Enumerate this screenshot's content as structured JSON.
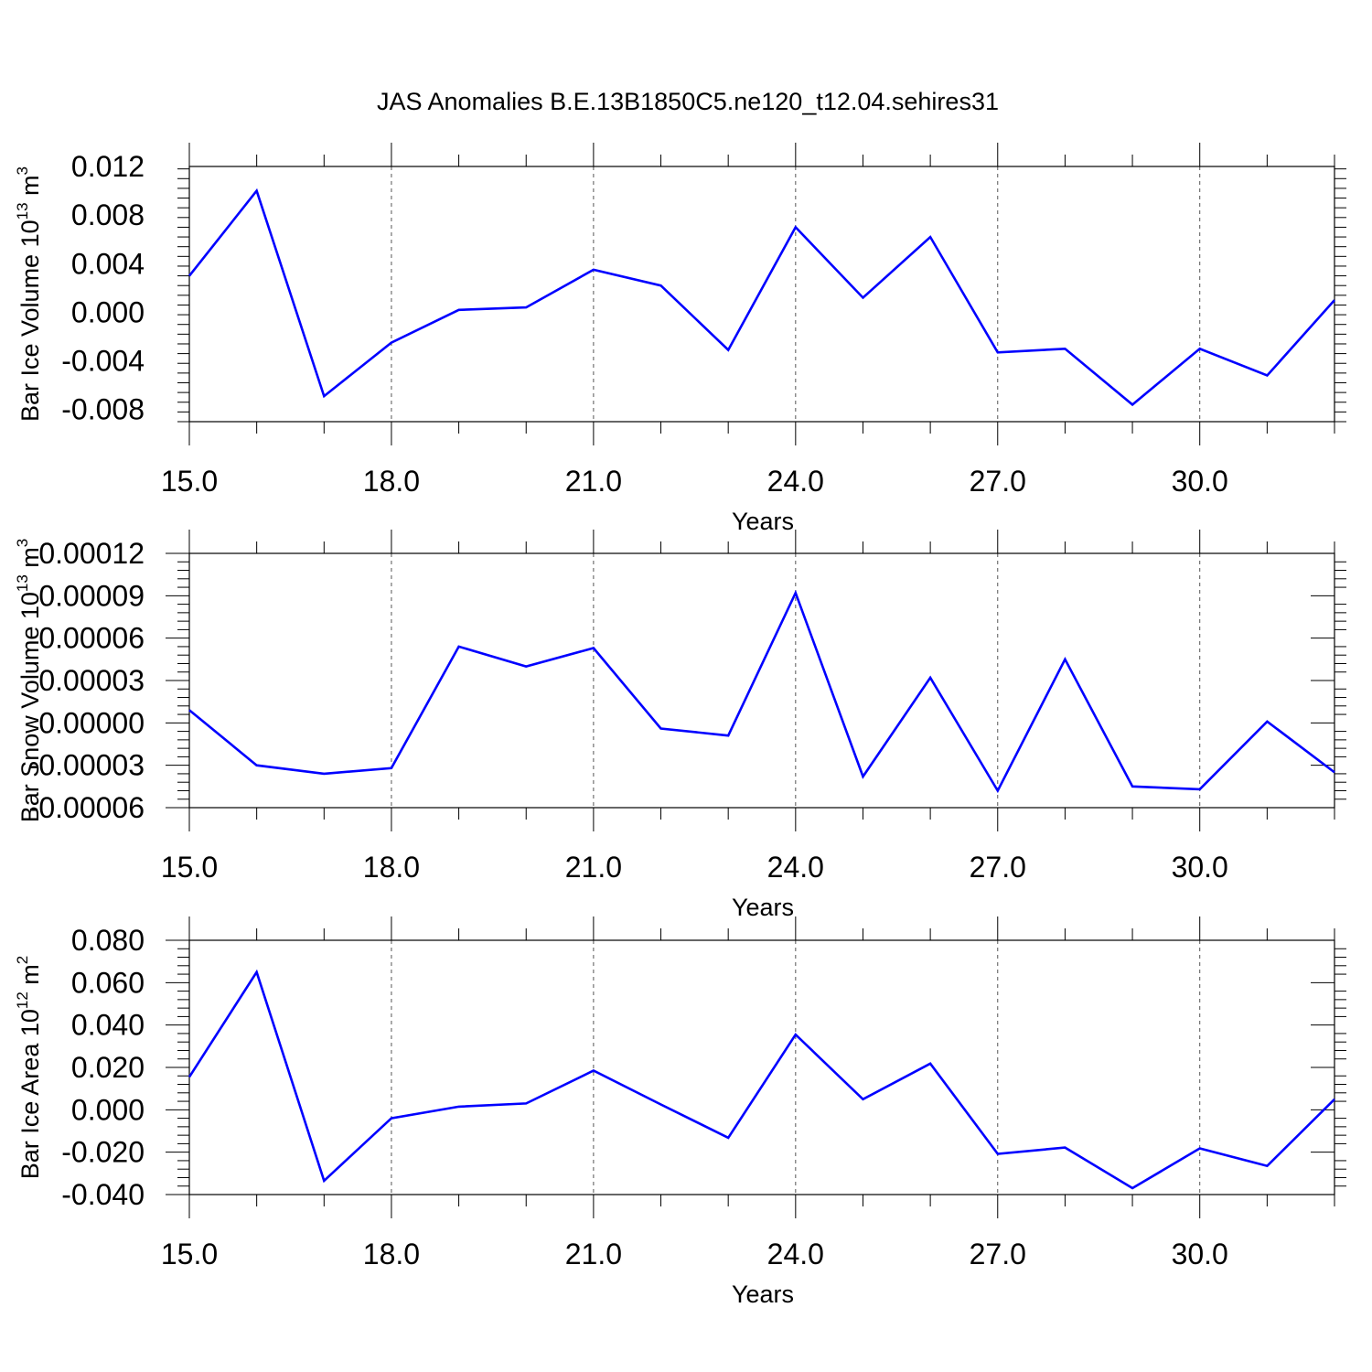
{
  "title": "JAS Anomalies B.E.13B1850C5.ne120_t12.04.sehires31",
  "chart_data": [
    {
      "type": "line",
      "title": "JAS Anomalies B.E.13B1850C5.ne120_t12.04.sehires31",
      "xlabel": "Years",
      "ylabel": "Bar Ice Volume 10",
      "ylabel_sup": "13",
      "ylabel_unit": "m",
      "ylabel_unit_sup": "3",
      "xlim": [
        15,
        32
      ],
      "ylim": [
        -0.009,
        0.012
      ],
      "xticks": [
        15,
        18,
        21,
        24,
        27,
        30
      ],
      "xtick_labels": [
        "15.0",
        "18.0",
        "21.0",
        "24.0",
        "27.0",
        "30.0"
      ],
      "yticks": [
        0.012,
        0.008,
        0.004,
        0.0,
        -0.004,
        -0.008
      ],
      "ytick_labels": [
        "0.012",
        "0.008",
        "0.004",
        "0.000",
        "-0.004",
        "-0.008"
      ],
      "grid": "vertical dashed at major x ticks",
      "line_color": "#0000ff",
      "x": [
        15,
        16,
        17,
        18,
        19,
        20,
        21,
        22,
        23,
        24,
        25,
        26,
        27,
        28,
        29,
        30,
        31,
        32
      ],
      "values": [
        0.003,
        0.01,
        -0.0069,
        -0.0025,
        0.0002,
        0.0004,
        0.0035,
        0.0022,
        -0.0031,
        0.007,
        0.0012,
        0.0062,
        -0.0033,
        -0.003,
        -0.0076,
        -0.003,
        -0.0052,
        0.001
      ]
    },
    {
      "type": "line",
      "xlabel": "Years",
      "ylabel": "Bar Snow Volume 10",
      "ylabel_sup": "13",
      "ylabel_unit": "m",
      "ylabel_unit_sup": "3",
      "xlim": [
        15,
        32
      ],
      "ylim": [
        -6e-05,
        0.00012
      ],
      "xticks": [
        15,
        18,
        21,
        24,
        27,
        30
      ],
      "xtick_labels": [
        "15.0",
        "18.0",
        "21.0",
        "24.0",
        "27.0",
        "30.0"
      ],
      "yticks": [
        0.00012,
        9e-05,
        6e-05,
        3e-05,
        0.0,
        -3e-05,
        -6e-05
      ],
      "ytick_labels": [
        "0.00012",
        "0.00009",
        "0.00006",
        "0.00003",
        "0.00000",
        "-0.00003",
        "-0.00006"
      ],
      "grid": "vertical dashed at major x ticks",
      "line_color": "#0000ff",
      "x": [
        15,
        16,
        17,
        18,
        19,
        20,
        21,
        22,
        23,
        24,
        25,
        26,
        27,
        28,
        29,
        30,
        31,
        32
      ],
      "values": [
        9e-06,
        -3e-05,
        -3.6e-05,
        -3.2e-05,
        5.4e-05,
        4e-05,
        5.3e-05,
        -4e-06,
        -9e-06,
        9.2e-05,
        -3.8e-05,
        3.2e-05,
        -4.8e-05,
        4.5e-05,
        -4.5e-05,
        -4.7e-05,
        1e-06,
        -3.5e-05
      ]
    },
    {
      "type": "line",
      "xlabel": "Years",
      "ylabel": "Bar Ice Area 10",
      "ylabel_sup": "12",
      "ylabel_unit": "m",
      "ylabel_unit_sup": "2",
      "xlim": [
        15,
        32
      ],
      "ylim": [
        -0.04,
        0.08
      ],
      "xticks": [
        15,
        18,
        21,
        24,
        27,
        30
      ],
      "xtick_labels": [
        "15.0",
        "18.0",
        "21.0",
        "24.0",
        "27.0",
        "30.0"
      ],
      "yticks": [
        0.08,
        0.06,
        0.04,
        0.02,
        0.0,
        -0.02,
        -0.04
      ],
      "ytick_labels": [
        "0.080",
        "0.060",
        "0.040",
        "0.020",
        "0.000",
        "-0.020",
        "-0.040"
      ],
      "grid": "vertical dashed at major x ticks",
      "line_color": "#0000ff",
      "x": [
        15,
        16,
        17,
        18,
        19,
        20,
        21,
        22,
        23,
        24,
        25,
        26,
        27,
        28,
        29,
        30,
        31,
        32
      ],
      "values": [
        0.0155,
        0.065,
        -0.0335,
        -0.004,
        0.0015,
        0.003,
        0.0185,
        0.0025,
        -0.0132,
        0.0355,
        0.005,
        0.0218,
        -0.0208,
        -0.0178,
        -0.037,
        -0.0182,
        -0.0265,
        0.005
      ]
    }
  ]
}
